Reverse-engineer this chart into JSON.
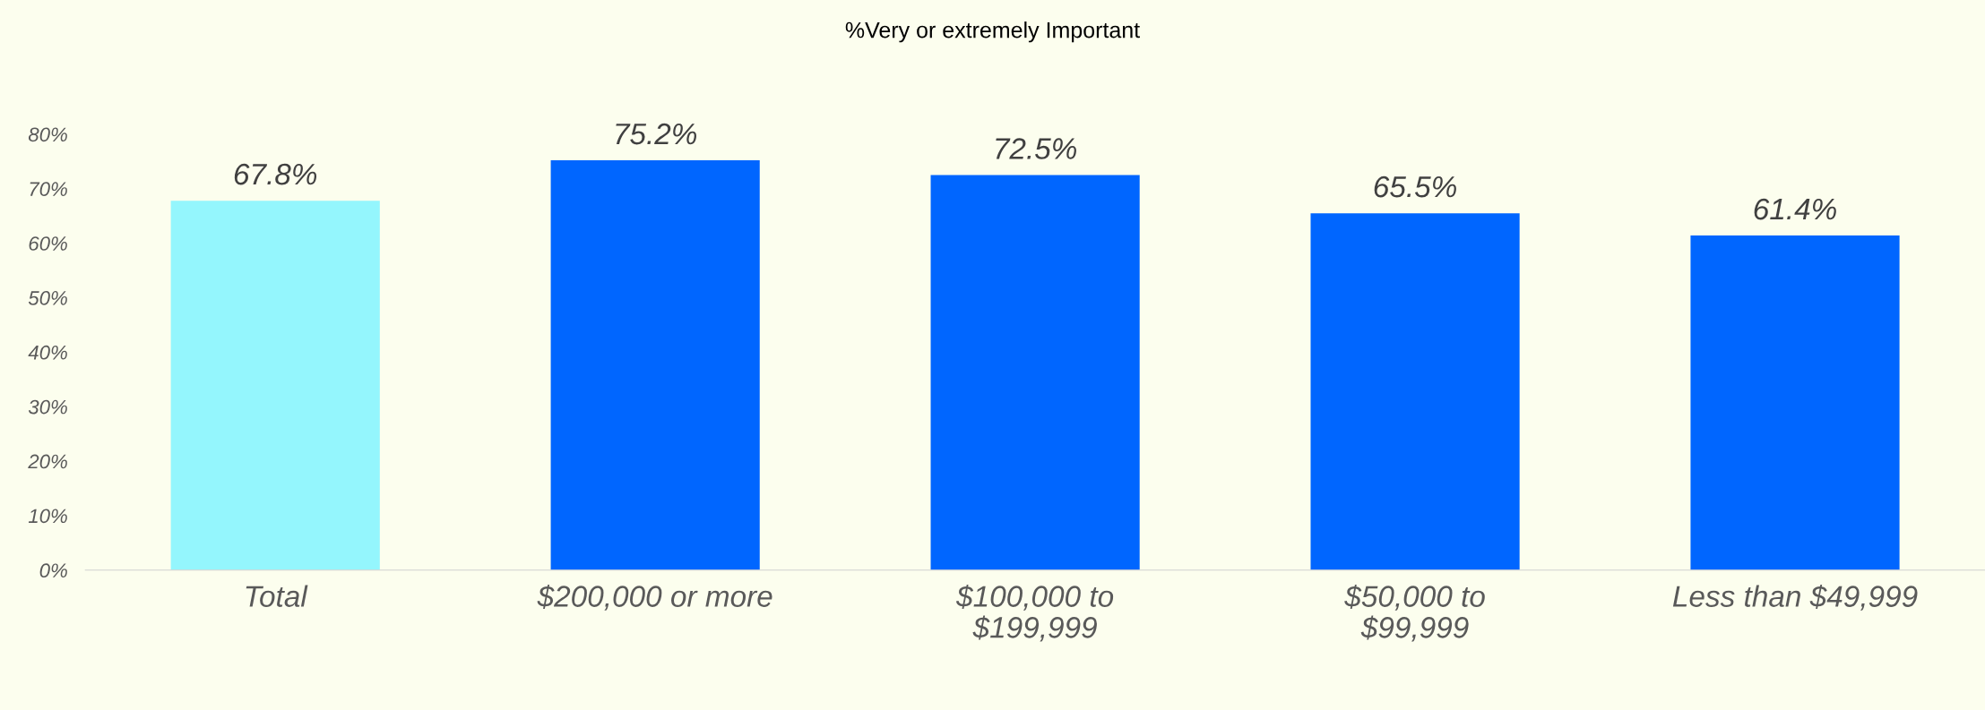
{
  "chart_data": {
    "type": "bar",
    "title": "%Very or extremely Important",
    "categories": [
      "Total",
      "$200,000 or more",
      "$100,000 to\n$199,999",
      "$50,000 to\n$99,999",
      "Less than $49,999"
    ],
    "values": [
      67.8,
      75.2,
      72.5,
      65.5,
      61.4
    ],
    "colors": [
      "#94f6fd",
      "#0066ff",
      "#0066ff",
      "#0066ff",
      "#0066ff"
    ],
    "value_labels": [
      "67.8%",
      "75.2%",
      "72.5%",
      "65.5%",
      "61.4%"
    ],
    "ylim": [
      0,
      80
    ],
    "yticks": [
      {
        "value": 0,
        "label": "0%"
      },
      {
        "value": 10,
        "label": "10%"
      },
      {
        "value": 20,
        "label": "20%"
      },
      {
        "value": 30,
        "label": "30%"
      },
      {
        "value": 40,
        "label": "40%"
      },
      {
        "value": 50,
        "label": "50%"
      },
      {
        "value": 60,
        "label": "60%"
      },
      {
        "value": 70,
        "label": "70%"
      },
      {
        "value": 80,
        "label": "80%"
      }
    ],
    "grid": false,
    "legend": false
  }
}
